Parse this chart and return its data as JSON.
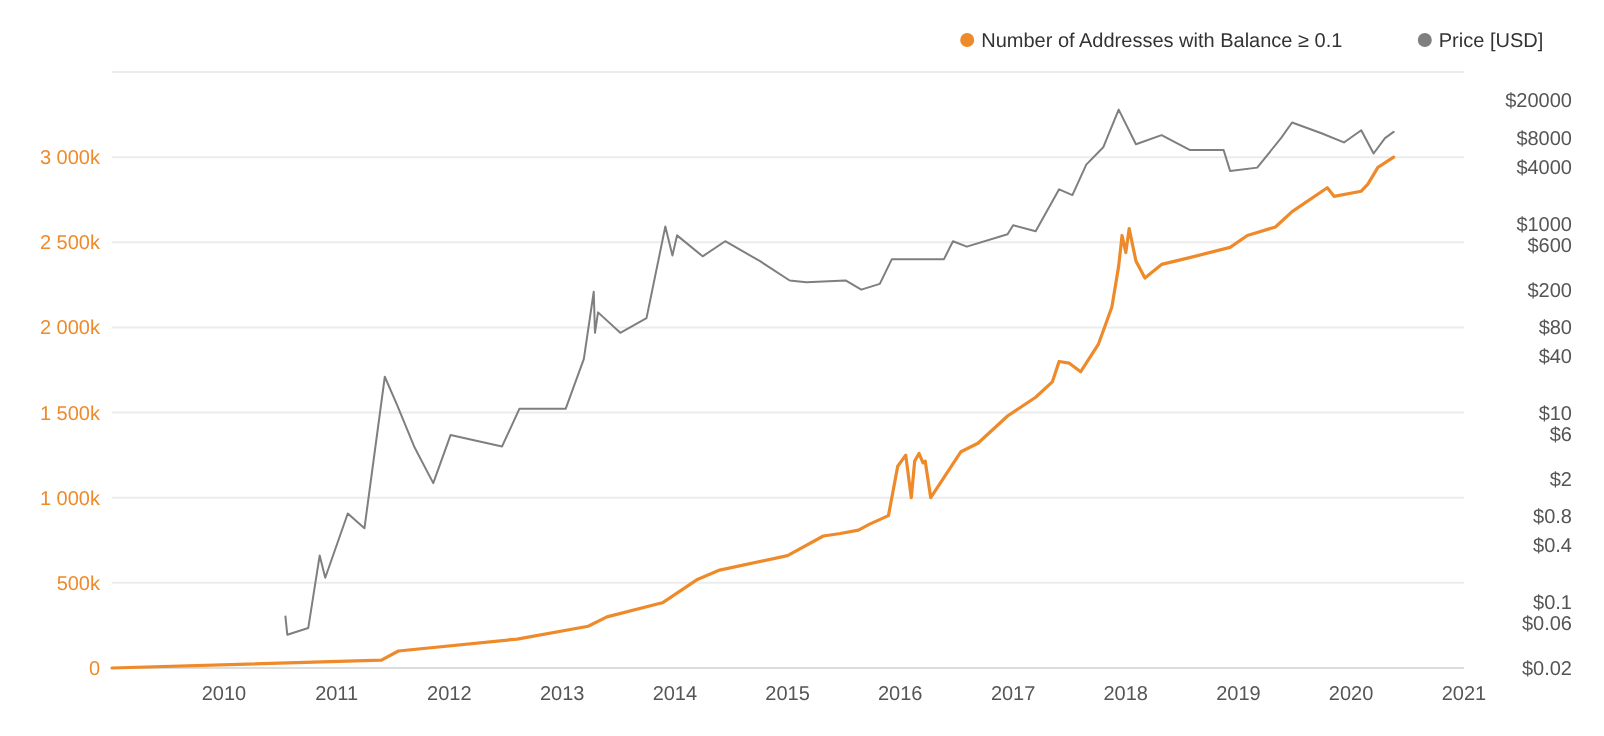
{
  "chart_data": {
    "type": "line",
    "xlim": [
      "2009-01-03",
      "2021-01-01"
    ],
    "xticks": [
      "2010",
      "2011",
      "2012",
      "2013",
      "2014",
      "2015",
      "2016",
      "2017",
      "2018",
      "2019",
      "2020",
      "2021"
    ],
    "ylim": [
      0,
      3500000
    ],
    "yticks": [
      {
        "value": 0,
        "label": "0"
      },
      {
        "value": 500000,
        "label": "500k"
      },
      {
        "value": 1000000,
        "label": "1 000k"
      },
      {
        "value": 1500000,
        "label": "1 500k"
      },
      {
        "value": 2000000,
        "label": "2 000k"
      },
      {
        "value": 2500000,
        "label": "2 500k"
      },
      {
        "value": 3000000,
        "label": "3 000k"
      }
    ],
    "y2lim": [
      0.02,
      40000
    ],
    "y2ticks": [
      {
        "value": 20000,
        "label": "$20000"
      },
      {
        "value": 8000,
        "label": "$8000"
      },
      {
        "value": 4000,
        "label": "$4000"
      },
      {
        "value": 1000,
        "label": "$1000"
      },
      {
        "value": 600,
        "label": "$600"
      },
      {
        "value": 200,
        "label": "$200"
      },
      {
        "value": 80,
        "label": "$80"
      },
      {
        "value": 40,
        "label": "$40"
      },
      {
        "value": 10,
        "label": "$10"
      },
      {
        "value": 6,
        "label": "$6"
      },
      {
        "value": 2,
        "label": "$2"
      },
      {
        "value": 0.8,
        "label": "$0.8"
      },
      {
        "value": 0.4,
        "label": "$0.4"
      },
      {
        "value": 0.1,
        "label": "$0.1"
      },
      {
        "value": 0.06,
        "label": "$0.06"
      },
      {
        "value": 0.02,
        "label": "$0.02"
      }
    ],
    "log": "y2",
    "grid": "y",
    "legend": "top right",
    "line_style": "solid",
    "series": [
      {
        "name": "Number of Addresses with Balance ≥ 0.1",
        "color": "#ee8a2a",
        "x": [
          "2009-01-03",
          "2011-05-26",
          "2011-07-20",
          "2012-08-08",
          "2013-03-26",
          "2013-05-26",
          "2013-11-24",
          "2014-03-15",
          "2014-05-26",
          "2015-01-01",
          "2015-04-27",
          "2015-06-21",
          "2015-08-19",
          "2015-09-24",
          "2015-11-24",
          "2015-12-24",
          "2016-01-19",
          "2016-02-06",
          "2016-02-17",
          "2016-03-02",
          "2016-03-15",
          "2016-03-22",
          "2016-04-09",
          "2016-07-16",
          "2016-09-09",
          "2016-12-14",
          "2017-03-15",
          "2017-05-08",
          "2017-05-30",
          "2017-07-02",
          "2017-08-08",
          "2017-10-04",
          "2017-11-17",
          "2017-12-09",
          "2017-12-20",
          "2018-01-01",
          "2018-01-12",
          "2018-02-03",
          "2018-03-04",
          "2018-04-27",
          "2018-07-27",
          "2018-12-05",
          "2019-01-30",
          "2019-05-01",
          "2019-06-24",
          "2019-10-16",
          "2019-11-07",
          "2020-02-03",
          "2020-02-24",
          "2020-03-28",
          "2020-05-18"
        ],
        "values": [
          0,
          46000,
          100000,
          170000,
          245000,
          300000,
          385000,
          520000,
          575000,
          660000,
          775000,
          790000,
          810000,
          845000,
          895000,
          1185000,
          1250000,
          1000000,
          1215000,
          1260000,
          1205000,
          1215000,
          1000000,
          1270000,
          1320000,
          1480000,
          1590000,
          1680000,
          1800000,
          1790000,
          1740000,
          1900000,
          2120000,
          2360000,
          2540000,
          2440000,
          2580000,
          2390000,
          2290000,
          2370000,
          2410000,
          2470000,
          2540000,
          2590000,
          2680000,
          2820000,
          2770000,
          2800000,
          2840000,
          2940000,
          3000000
        ]
      },
      {
        "name": "Price [USD]",
        "color": "#7f7f7f",
        "axis": "y2",
        "x": [
          "2010-07-19",
          "2010-07-25",
          "2010-10-01",
          "2010-11-07",
          "2010-11-25",
          "2011-02-06",
          "2011-04-01",
          "2011-06-06",
          "2011-07-16",
          "2011-09-09",
          "2011-11-10",
          "2012-01-05",
          "2012-06-20",
          "2012-08-15",
          "2013-01-12",
          "2013-03-12",
          "2013-04-13",
          "2013-04-17",
          "2013-04-27",
          "2013-07-08",
          "2013-10-01",
          "2013-12-01",
          "2013-12-24",
          "2014-01-08",
          "2014-04-01",
          "2014-06-13",
          "2014-10-04",
          "2015-01-08",
          "2015-03-03",
          "2015-07-08",
          "2015-08-28",
          "2015-10-27",
          "2015-12-05",
          "2016-05-22",
          "2016-06-20",
          "2016-08-04",
          "2016-12-14",
          "2017-01-01",
          "2017-03-15",
          "2017-05-30",
          "2017-07-12",
          "2017-08-26",
          "2017-10-20",
          "2017-12-09",
          "2018-02-03",
          "2018-04-27",
          "2018-07-27",
          "2018-11-14",
          "2018-12-05",
          "2019-03-03",
          "2019-05-19",
          "2019-06-24",
          "2019-09-27",
          "2019-12-09",
          "2020-02-03",
          "2020-03-14",
          "2020-04-20",
          "2020-05-18"
        ],
        "values": [
          0.07,
          0.045,
          0.053,
          0.31,
          0.18,
          0.86,
          0.6,
          24,
          12,
          4.4,
          1.8,
          5.8,
          4.4,
          11,
          11,
          37,
          190,
          70,
          115,
          70,
          100,
          930,
          460,
          750,
          450,
          650,
          400,
          250,
          240,
          250,
          200,
          230,
          420,
          420,
          650,
          570,
          770,
          960,
          830,
          2300,
          2000,
          4200,
          6400,
          16000,
          6900,
          8600,
          6000,
          6000,
          3600,
          3900,
          8000,
          11700,
          9000,
          7200,
          9700,
          5500,
          8000,
          9300
        ]
      }
    ]
  }
}
